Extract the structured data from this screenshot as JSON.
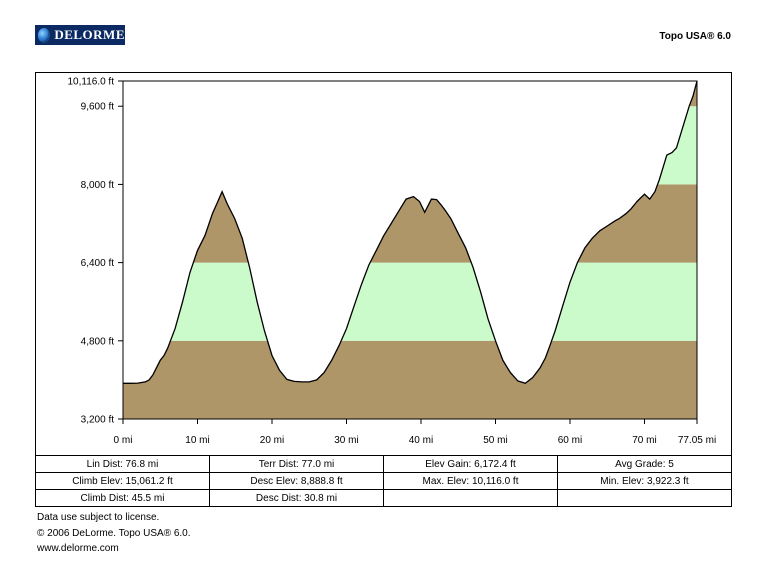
{
  "header": {
    "logo_text": "DELORME",
    "product_title": "Topo USA® 6.0"
  },
  "chart_data": {
    "type": "area",
    "title": "",
    "xlabel": "",
    "ylabel": "",
    "x_unit": "mi",
    "y_unit": "ft",
    "xlim": [
      0,
      77.05
    ],
    "ylim": [
      3200,
      10116
    ],
    "x_ticks": [
      0,
      10,
      20,
      30,
      40,
      50,
      60,
      70,
      77.05
    ],
    "x_tick_labels": [
      "0 mi",
      "10 mi",
      "20 mi",
      "30 mi",
      "40 mi",
      "50 mi",
      "60 mi",
      "70 mi",
      "77.05 mi"
    ],
    "y_ticks": [
      3200,
      4800,
      6400,
      8000,
      9600,
      10116
    ],
    "y_tick_labels": [
      "3,200 ft",
      "4,800 ft",
      "6,400 ft",
      "8,000 ft",
      "9,600 ft",
      "10,116.0 ft"
    ],
    "bands": [
      {
        "from": 3200,
        "to": 4800,
        "color": "#af9669"
      },
      {
        "from": 4800,
        "to": 6400,
        "color": "#cbfacb"
      },
      {
        "from": 6400,
        "to": 8000,
        "color": "#af9669"
      },
      {
        "from": 8000,
        "to": 9600,
        "color": "#cbfacb"
      },
      {
        "from": 9600,
        "to": 10116,
        "color": "#af9669"
      }
    ],
    "series": [
      {
        "x": [
          0,
          1,
          2,
          3,
          3.5,
          4,
          4.5,
          5,
          5.5,
          6,
          7,
          8,
          9,
          10,
          11,
          12,
          12.7,
          13.3,
          14,
          15,
          16,
          17,
          18,
          19,
          20,
          21,
          22,
          23,
          24,
          25,
          26,
          27,
          28,
          29,
          30,
          31,
          32,
          33,
          34,
          35,
          36,
          37,
          38,
          39,
          39.8,
          40.5,
          41.4,
          42.1,
          42.7,
          43.2,
          44,
          45,
          46,
          47,
          48,
          49,
          50,
          51,
          52,
          53,
          54,
          55,
          56,
          56.7,
          57.3,
          58,
          59,
          60,
          61,
          62,
          63,
          64,
          65,
          66,
          66.6,
          67.5,
          68.2,
          69,
          70,
          70.7,
          71.4,
          72,
          72.5,
          73,
          73.7,
          74.3,
          75,
          76,
          76.5,
          77.05
        ],
        "values": [
          3930,
          3930,
          3935,
          3960,
          4000,
          4100,
          4250,
          4400,
          4500,
          4650,
          5050,
          5600,
          6200,
          6650,
          6950,
          7400,
          7640,
          7850,
          7600,
          7300,
          6900,
          6300,
          5600,
          5000,
          4500,
          4200,
          4010,
          3970,
          3960,
          3960,
          4000,
          4150,
          4400,
          4700,
          5050,
          5500,
          5950,
          6350,
          6650,
          6950,
          7200,
          7450,
          7700,
          7750,
          7650,
          7430,
          7700,
          7690,
          7580,
          7480,
          7300,
          7000,
          6700,
          6300,
          5800,
          5250,
          4800,
          4400,
          4150,
          3980,
          3930,
          4050,
          4250,
          4450,
          4700,
          5000,
          5500,
          6000,
          6400,
          6700,
          6900,
          7050,
          7150,
          7250,
          7300,
          7400,
          7500,
          7650,
          7800,
          7700,
          7850,
          8100,
          8350,
          8600,
          8650,
          8750,
          9100,
          9600,
          9800,
          10116
        ]
      }
    ]
  },
  "stats": {
    "rows": [
      [
        "Lin Dist: 76.8 mi",
        "Terr Dist: 77.0 mi",
        "Elev Gain: 6,172.4 ft",
        "Avg Grade: 5"
      ],
      [
        "Climb Elev: 15,061.2 ft",
        "Desc Elev: 8,888.8 ft",
        "Max. Elev: 10,116.0 ft",
        "Min. Elev: 3,922.3 ft"
      ],
      [
        "Climb Dist: 45.5 mi",
        "Desc Dist: 30.8 mi",
        "",
        ""
      ]
    ]
  },
  "footer": {
    "line1": "Data use subject to license.",
    "line2": "© 2006 DeLorme. Topo USA® 6.0.",
    "line3": "www.delorme.com"
  }
}
